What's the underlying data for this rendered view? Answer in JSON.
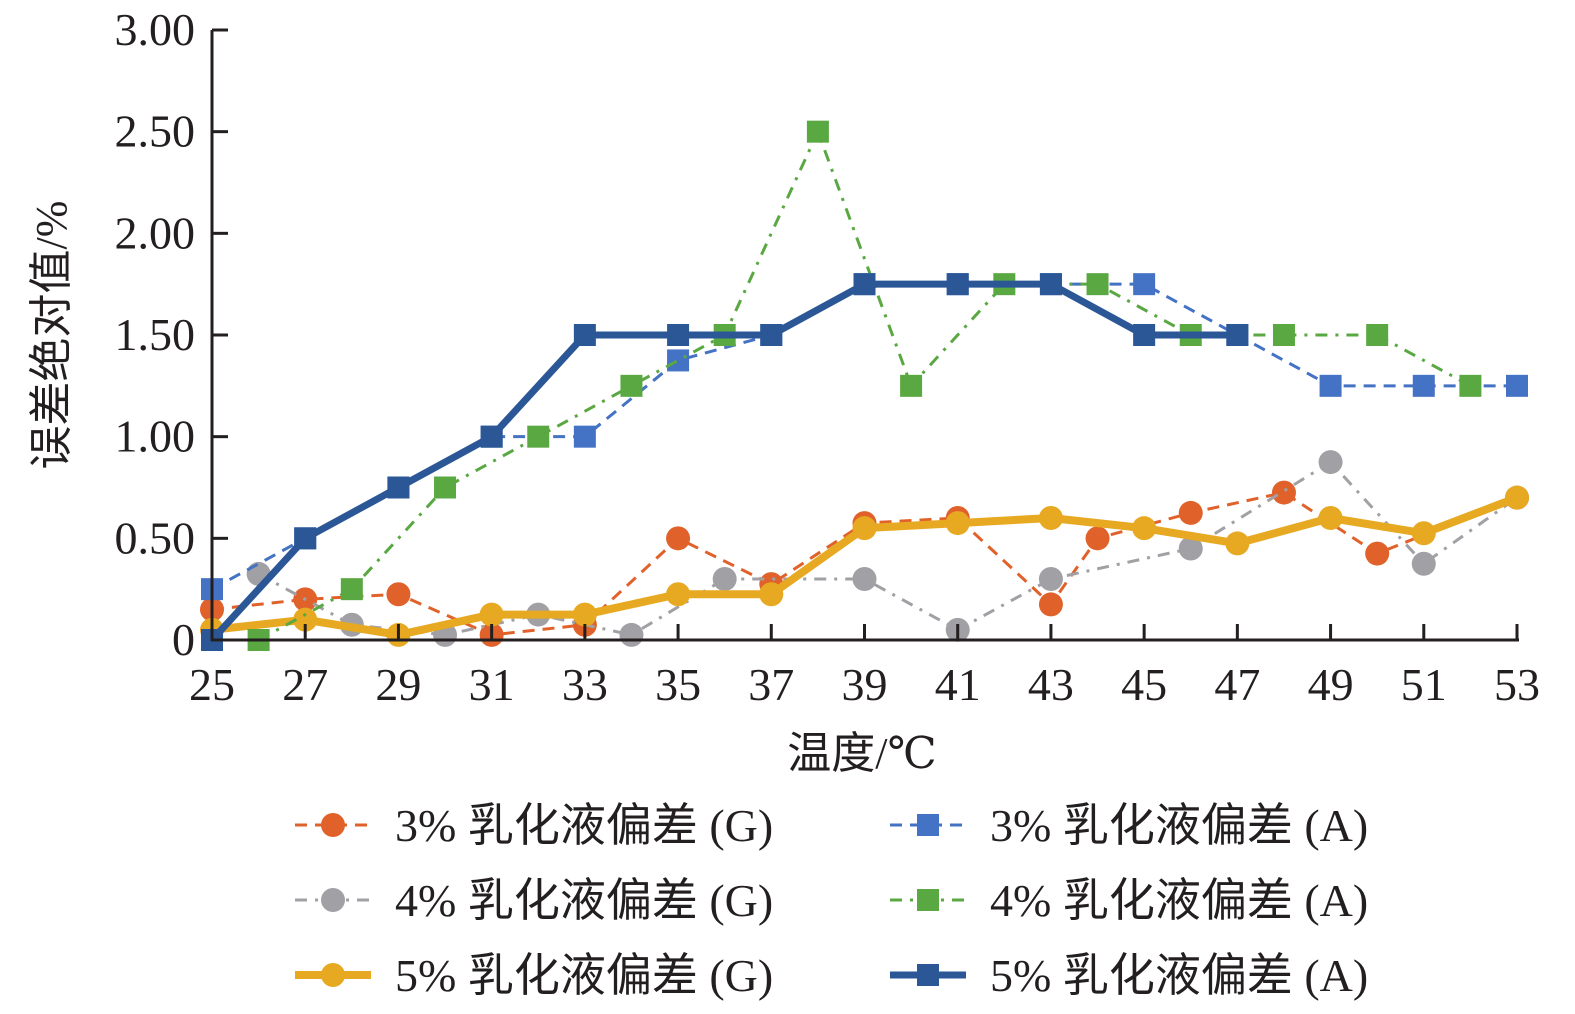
{
  "chart_data": {
    "type": "line",
    "title": "",
    "xlabel": "温度/℃",
    "ylabel": "误差绝对值/%",
    "xlim": [
      25,
      53
    ],
    "ylim": [
      0,
      3
    ],
    "x_ticks": [
      "25",
      "27",
      "29",
      "31",
      "33",
      "35",
      "37",
      "39",
      "41",
      "43",
      "45",
      "47",
      "49",
      "51",
      "53"
    ],
    "x_tick_values": [
      25,
      27,
      29,
      31,
      33,
      35,
      37,
      39,
      41,
      43,
      45,
      47,
      49,
      51,
      53
    ],
    "y_ticks": [
      "0",
      "0.50",
      "1.00",
      "1.50",
      "2.00",
      "2.50",
      "3.00"
    ],
    "y_tick_values": [
      0,
      0.5,
      1,
      1.5,
      2,
      2.5,
      3
    ],
    "grid": false,
    "legend_placement": "bottom",
    "series": [
      {
        "name": "3% 乳化液偏差 (G)",
        "color": "#e0622a",
        "marker": "circle",
        "dash": "dash",
        "width": 3,
        "x": [
          25,
          27,
          29,
          31,
          33,
          35,
          37,
          39,
          41,
          43,
          44,
          46,
          48,
          50,
          53
        ],
        "y": [
          0.15,
          0.2,
          0.225,
          0.025,
          0.075,
          0.5,
          0.275,
          0.575,
          0.6,
          0.175,
          0.5,
          0.625,
          0.725,
          0.425,
          0.7
        ]
      },
      {
        "name": "4% 乳化液偏差 (G)",
        "color": "#a0a0a5",
        "marker": "circle",
        "dash": "dashdot",
        "width": 3,
        "x": [
          26,
          28,
          30,
          32,
          34,
          36,
          39,
          41,
          43,
          46,
          49,
          51,
          53
        ],
        "y": [
          0.325,
          0.075,
          0.025,
          0.125,
          0.025,
          0.3,
          0.3,
          0.05,
          0.3,
          0.45,
          0.875,
          0.375,
          0.7
        ]
      },
      {
        "name": "5% 乳化液偏差 (G)",
        "color": "#e8a922",
        "marker": "circle",
        "dash": "solid",
        "width": 8,
        "x": [
          25,
          27,
          29,
          31,
          33,
          35,
          37,
          39,
          41,
          43,
          45,
          47,
          49,
          51,
          53
        ],
        "y": [
          0.05,
          0.1,
          0.025,
          0.125,
          0.125,
          0.225,
          0.225,
          0.55,
          0.575,
          0.6,
          0.55,
          0.475,
          0.6,
          0.525,
          0.7
        ]
      },
      {
        "name": "3% 乳化液偏差 (A)",
        "color": "#4472c4",
        "marker": "square",
        "dash": "dash",
        "width": 3,
        "x": [
          25,
          27,
          29,
          31,
          33,
          35,
          37,
          39,
          41,
          43,
          45,
          47,
          49,
          51,
          53
        ],
        "y": [
          0.25,
          0.5,
          0.75,
          1.0,
          1.0,
          1.375,
          1.5,
          1.75,
          1.75,
          1.75,
          1.75,
          1.5,
          1.25,
          1.25,
          1.25
        ]
      },
      {
        "name": "4% 乳化液偏差 (A)",
        "color": "#5aa842",
        "marker": "square",
        "dash": "dashdot",
        "width": 3,
        "x": [
          26,
          28,
          30,
          32,
          34,
          36,
          38,
          40,
          42,
          44,
          46,
          48,
          50,
          52
        ],
        "y": [
          0,
          0.25,
          0.75,
          1.0,
          1.25,
          1.5,
          2.5,
          1.25,
          1.75,
          1.75,
          1.5,
          1.5,
          1.5,
          1.25
        ]
      },
      {
        "name": "5% 乳化液偏差 (A)",
        "color": "#2b5797",
        "marker": "square",
        "dash": "solid",
        "width": 7,
        "x": [
          25,
          27,
          29,
          31,
          33,
          35,
          37,
          39,
          41,
          43,
          45,
          47
        ],
        "y": [
          0,
          0.5,
          0.75,
          1.0,
          1.5,
          1.5,
          1.5,
          1.75,
          1.75,
          1.75,
          1.5,
          1.5
        ]
      }
    ]
  }
}
